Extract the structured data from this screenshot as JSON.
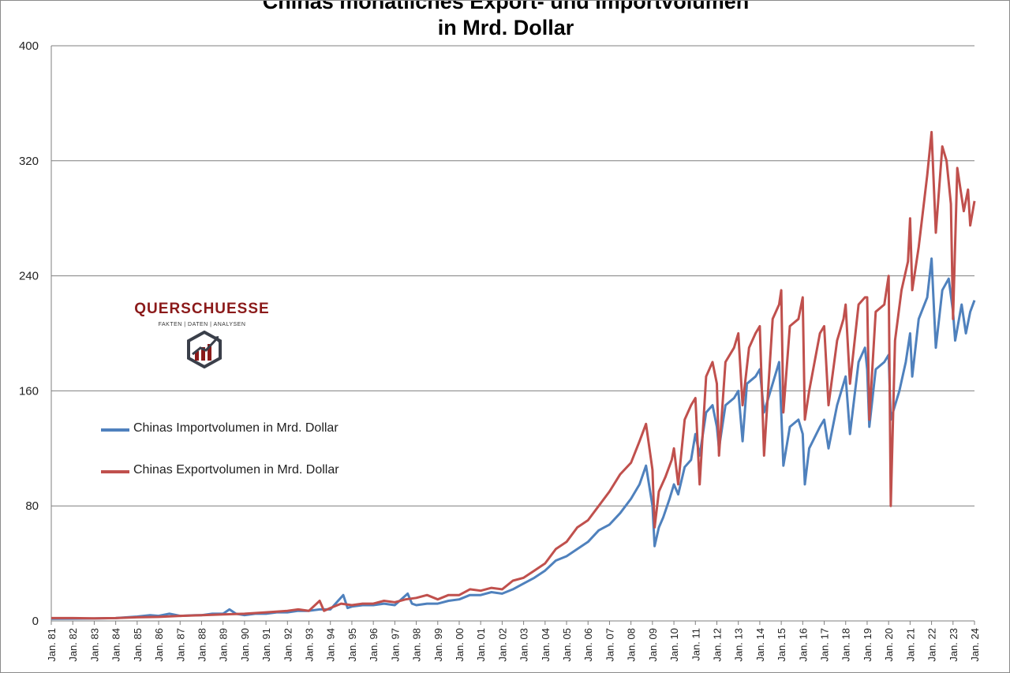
{
  "chart_data": {
    "type": "line",
    "title": "Chinas monatliches Export- und Importvolumen",
    "title_line2": "in Mrd. Dollar",
    "ylim": [
      0,
      400
    ],
    "yticks": [
      0,
      80,
      160,
      240,
      320,
      400
    ],
    "xlim": [
      "Jan. 81",
      "Jan. 24"
    ],
    "xtick_labels": [
      "Jan. 81",
      "Jan. 82",
      "Jan. 83",
      "Jan. 84",
      "Jan. 85",
      "Jan. 86",
      "Jan. 87",
      "Jan. 88",
      "Jan. 89",
      "Jan. 90",
      "Jan. 91",
      "Jan. 92",
      "Jan. 93",
      "Jan. 94",
      "Jan. 95",
      "Jan. 96",
      "Jan. 97",
      "Jan. 98",
      "Jan. 99",
      "Jan. 00",
      "Jan. 01",
      "Jan. 02",
      "Jan. 03",
      "Jan. 04",
      "Jan. 05",
      "Jan. 06",
      "Jan. 07",
      "Jan. 08",
      "Jan. 09",
      "Jan. 10",
      "Jan. 11",
      "Jan. 12",
      "Jan. 13",
      "Jan. 14",
      "Jan. 15",
      "Jan. 16",
      "Jan. 17",
      "Jan. 18",
      "Jan. 19",
      "Jan. 20",
      "Jan. 21",
      "Jan. 22",
      "Jan. 23",
      "Jan. 24"
    ],
    "grid": "horizontal",
    "legend_position": "left-middle",
    "series": [
      {
        "name": "Chinas Importvolumen in Mrd. Dollar",
        "color": "#4f81bd",
        "points": [
          [
            1981.0,
            1.5
          ],
          [
            1982.0,
            1.6
          ],
          [
            1983.0,
            1.7
          ],
          [
            1984.0,
            2
          ],
          [
            1985.0,
            3
          ],
          [
            1985.6,
            4
          ],
          [
            1986.0,
            3.5
          ],
          [
            1986.5,
            5
          ],
          [
            1987.0,
            3.5
          ],
          [
            1987.7,
            4
          ],
          [
            1988.0,
            4
          ],
          [
            1988.5,
            5
          ],
          [
            1989.0,
            5
          ],
          [
            1989.3,
            8
          ],
          [
            1989.6,
            5
          ],
          [
            1990.0,
            4
          ],
          [
            1990.5,
            5
          ],
          [
            1991.0,
            5
          ],
          [
            1991.5,
            6
          ],
          [
            1992.0,
            6
          ],
          [
            1992.5,
            7
          ],
          [
            1993.0,
            7
          ],
          [
            1993.5,
            8
          ],
          [
            1994.0,
            8
          ],
          [
            1994.6,
            18
          ],
          [
            1994.8,
            9
          ],
          [
            1995.0,
            10
          ],
          [
            1995.5,
            11
          ],
          [
            1996.0,
            11
          ],
          [
            1996.5,
            12
          ],
          [
            1997.0,
            11
          ],
          [
            1997.6,
            19
          ],
          [
            1997.8,
            12
          ],
          [
            1998.0,
            11
          ],
          [
            1998.5,
            12
          ],
          [
            1999.0,
            12
          ],
          [
            1999.5,
            14
          ],
          [
            2000.0,
            15
          ],
          [
            2000.5,
            18
          ],
          [
            2001.0,
            18
          ],
          [
            2001.5,
            20
          ],
          [
            2002.0,
            19
          ],
          [
            2002.5,
            22
          ],
          [
            2003.0,
            26
          ],
          [
            2003.5,
            30
          ],
          [
            2004.0,
            35
          ],
          [
            2004.5,
            42
          ],
          [
            2005.0,
            45
          ],
          [
            2005.5,
            50
          ],
          [
            2006.0,
            55
          ],
          [
            2006.5,
            63
          ],
          [
            2007.0,
            67
          ],
          [
            2007.5,
            75
          ],
          [
            2008.0,
            85
          ],
          [
            2008.4,
            95
          ],
          [
            2008.7,
            108
          ],
          [
            2009.0,
            80
          ],
          [
            2009.1,
            52
          ],
          [
            2009.3,
            65
          ],
          [
            2009.5,
            72
          ],
          [
            2009.8,
            85
          ],
          [
            2010.0,
            95
          ],
          [
            2010.2,
            88
          ],
          [
            2010.5,
            107
          ],
          [
            2010.8,
            112
          ],
          [
            2011.0,
            130
          ],
          [
            2011.2,
            115
          ],
          [
            2011.5,
            145
          ],
          [
            2011.8,
            150
          ],
          [
            2012.0,
            135
          ],
          [
            2012.1,
            120
          ],
          [
            2012.4,
            150
          ],
          [
            2012.8,
            155
          ],
          [
            2013.0,
            160
          ],
          [
            2013.2,
            125
          ],
          [
            2013.4,
            165
          ],
          [
            2013.8,
            170
          ],
          [
            2014.0,
            175
          ],
          [
            2014.2,
            145
          ],
          [
            2014.6,
            165
          ],
          [
            2014.9,
            180
          ],
          [
            2015.0,
            145
          ],
          [
            2015.1,
            108
          ],
          [
            2015.4,
            135
          ],
          [
            2015.8,
            140
          ],
          [
            2016.0,
            130
          ],
          [
            2016.1,
            95
          ],
          [
            2016.3,
            120
          ],
          [
            2016.8,
            135
          ],
          [
            2017.0,
            140
          ],
          [
            2017.2,
            120
          ],
          [
            2017.6,
            150
          ],
          [
            2017.9,
            165
          ],
          [
            2018.0,
            170
          ],
          [
            2018.2,
            130
          ],
          [
            2018.6,
            180
          ],
          [
            2018.9,
            190
          ],
          [
            2019.0,
            175
          ],
          [
            2019.1,
            135
          ],
          [
            2019.4,
            175
          ],
          [
            2019.8,
            180
          ],
          [
            2020.0,
            185
          ],
          [
            2020.1,
            140
          ],
          [
            2020.3,
            150
          ],
          [
            2020.5,
            160
          ],
          [
            2020.8,
            180
          ],
          [
            2021.0,
            200
          ],
          [
            2021.1,
            170
          ],
          [
            2021.4,
            210
          ],
          [
            2021.8,
            225
          ],
          [
            2022.0,
            252
          ],
          [
            2022.2,
            190
          ],
          [
            2022.5,
            230
          ],
          [
            2022.8,
            238
          ],
          [
            2023.0,
            215
          ],
          [
            2023.1,
            195
          ],
          [
            2023.4,
            220
          ],
          [
            2023.6,
            200
          ],
          [
            2023.8,
            215
          ],
          [
            2024.0,
            223
          ]
        ]
      },
      {
        "name": "Chinas Exportvolumen in Mrd. Dollar",
        "color": "#c0504d",
        "points": [
          [
            1981.0,
            2
          ],
          [
            1982.0,
            2
          ],
          [
            1983.0,
            1.8
          ],
          [
            1984.0,
            2
          ],
          [
            1985.0,
            2.5
          ],
          [
            1986.0,
            2.8
          ],
          [
            1987.0,
            3.5
          ],
          [
            1988.0,
            4
          ],
          [
            1989.0,
            4.5
          ],
          [
            1990.0,
            5
          ],
          [
            1991.0,
            6
          ],
          [
            1992.0,
            7
          ],
          [
            1992.5,
            8
          ],
          [
            1993.0,
            7
          ],
          [
            1993.5,
            14
          ],
          [
            1993.7,
            7
          ],
          [
            1994.0,
            9
          ],
          [
            1994.5,
            12
          ],
          [
            1995.0,
            11
          ],
          [
            1995.5,
            12
          ],
          [
            1996.0,
            12
          ],
          [
            1996.5,
            14
          ],
          [
            1997.0,
            13
          ],
          [
            1997.5,
            15
          ],
          [
            1998.0,
            16
          ],
          [
            1998.5,
            18
          ],
          [
            1999.0,
            15
          ],
          [
            1999.5,
            18
          ],
          [
            2000.0,
            18
          ],
          [
            2000.5,
            22
          ],
          [
            2001.0,
            21
          ],
          [
            2001.5,
            23
          ],
          [
            2002.0,
            22
          ],
          [
            2002.5,
            28
          ],
          [
            2003.0,
            30
          ],
          [
            2003.5,
            35
          ],
          [
            2004.0,
            40
          ],
          [
            2004.5,
            50
          ],
          [
            2005.0,
            55
          ],
          [
            2005.5,
            65
          ],
          [
            2006.0,
            70
          ],
          [
            2006.5,
            80
          ],
          [
            2007.0,
            90
          ],
          [
            2007.5,
            102
          ],
          [
            2008.0,
            110
          ],
          [
            2008.4,
            125
          ],
          [
            2008.7,
            137
          ],
          [
            2009.0,
            105
          ],
          [
            2009.1,
            65
          ],
          [
            2009.3,
            90
          ],
          [
            2009.6,
            100
          ],
          [
            2009.9,
            112
          ],
          [
            2010.0,
            120
          ],
          [
            2010.2,
            95
          ],
          [
            2010.5,
            140
          ],
          [
            2010.8,
            150
          ],
          [
            2011.0,
            155
          ],
          [
            2011.2,
            95
          ],
          [
            2011.5,
            170
          ],
          [
            2011.8,
            180
          ],
          [
            2012.0,
            165
          ],
          [
            2012.1,
            115
          ],
          [
            2012.4,
            180
          ],
          [
            2012.8,
            190
          ],
          [
            2013.0,
            200
          ],
          [
            2013.2,
            150
          ],
          [
            2013.5,
            190
          ],
          [
            2013.8,
            200
          ],
          [
            2014.0,
            205
          ],
          [
            2014.2,
            115
          ],
          [
            2014.6,
            210
          ],
          [
            2014.9,
            220
          ],
          [
            2015.0,
            230
          ],
          [
            2015.1,
            145
          ],
          [
            2015.4,
            205
          ],
          [
            2015.8,
            210
          ],
          [
            2016.0,
            225
          ],
          [
            2016.1,
            140
          ],
          [
            2016.3,
            160
          ],
          [
            2016.8,
            200
          ],
          [
            2017.0,
            205
          ],
          [
            2017.2,
            150
          ],
          [
            2017.6,
            195
          ],
          [
            2017.9,
            210
          ],
          [
            2018.0,
            220
          ],
          [
            2018.2,
            165
          ],
          [
            2018.6,
            220
          ],
          [
            2018.9,
            225
          ],
          [
            2019.0,
            225
          ],
          [
            2019.1,
            140
          ],
          [
            2019.4,
            215
          ],
          [
            2019.8,
            220
          ],
          [
            2020.0,
            240
          ],
          [
            2020.1,
            80
          ],
          [
            2020.3,
            195
          ],
          [
            2020.6,
            230
          ],
          [
            2020.9,
            250
          ],
          [
            2021.0,
            280
          ],
          [
            2021.1,
            230
          ],
          [
            2021.4,
            260
          ],
          [
            2021.8,
            310
          ],
          [
            2022.0,
            340
          ],
          [
            2022.2,
            270
          ],
          [
            2022.5,
            330
          ],
          [
            2022.7,
            320
          ],
          [
            2022.9,
            290
          ],
          [
            2023.0,
            210
          ],
          [
            2023.2,
            315
          ],
          [
            2023.5,
            285
          ],
          [
            2023.7,
            300
          ],
          [
            2023.8,
            275
          ],
          [
            2024.0,
            292
          ]
        ]
      }
    ]
  },
  "logo": {
    "name": "QUERSCHUESSE",
    "tagline": "FAKTEN | DATEN | ANALYSEN",
    "mark_icon": "chart-up-arrow-icon"
  }
}
